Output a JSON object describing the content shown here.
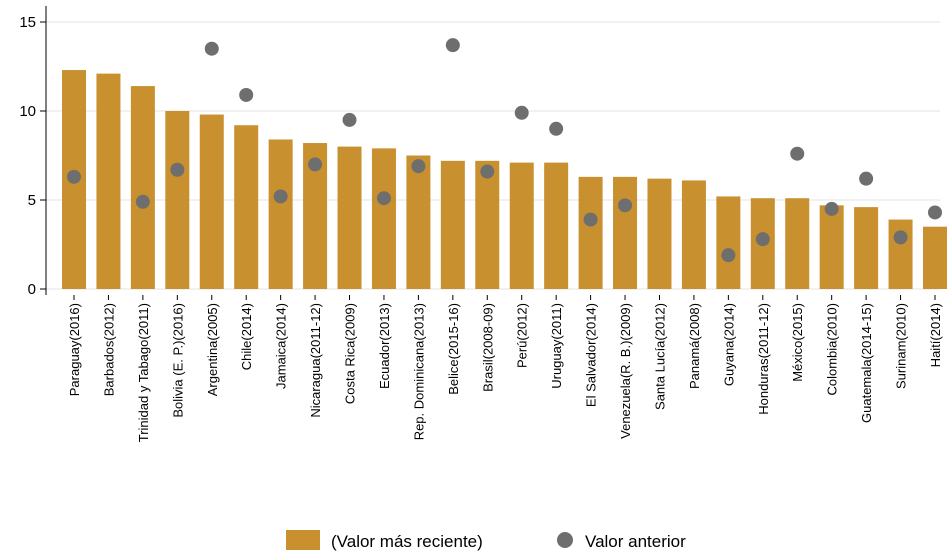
{
  "chart_data": {
    "type": "bar",
    "categories": [
      "Paraguay(2016)",
      "Barbados(2012)",
      "Trinidad y Tabago(2011)",
      "Bolivia (E. P.)(2016)",
      "Argentina(2005)",
      "Chile(2014)",
      "Jamaica(2014)",
      "Nicaragua(2011-12)",
      "Costa Rica(2009)",
      "Ecuador(2013)",
      "Rep. Dominicana(2013)",
      "Belice(2015-16)",
      "Brasil(2008-09)",
      "Perú(2012)",
      "Uruguay(2011)",
      "El Salvador(2014)",
      "Venezuela(R. B.)(2009)",
      "Santa Lucía(2012)",
      "Panamá(2008)",
      "Guyana(2014)",
      "Honduras(2011-12)",
      "México(2015)",
      "Colombia(2010)",
      "Guatemala(2014-15)",
      "Surinam(2010)",
      "Haití(2014)"
    ],
    "series": [
      {
        "name": "(Valor más reciente)",
        "kind": "bar",
        "color": "#c8902e",
        "values": [
          12.3,
          12.1,
          11.4,
          10.0,
          9.8,
          9.2,
          8.4,
          8.2,
          8.0,
          7.9,
          7.5,
          7.2,
          7.2,
          7.1,
          7.1,
          6.3,
          6.3,
          6.2,
          6.1,
          5.2,
          5.1,
          5.1,
          4.7,
          4.6,
          3.9,
          3.5
        ]
      },
      {
        "name": "Valor anterior",
        "kind": "scatter",
        "color": "#6e6e6e",
        "values": [
          6.3,
          null,
          4.9,
          6.7,
          13.5,
          10.9,
          5.2,
          7.0,
          9.5,
          5.1,
          6.9,
          13.7,
          6.6,
          9.9,
          9.0,
          3.9,
          4.7,
          null,
          null,
          1.9,
          2.8,
          7.6,
          4.5,
          6.2,
          2.9,
          4.3
        ]
      }
    ],
    "title": "",
    "xlabel": "",
    "ylabel": "",
    "ylim": [
      0,
      15
    ],
    "yticks": [
      0,
      5,
      10,
      15
    ],
    "grid": true,
    "legend_position": "bottom-center"
  }
}
